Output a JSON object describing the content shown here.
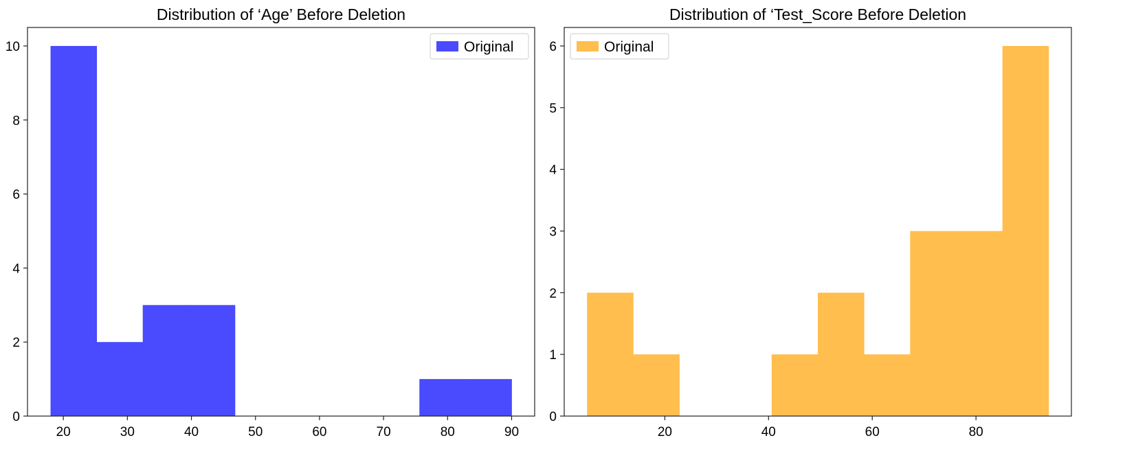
{
  "chart_data": [
    {
      "type": "bar",
      "subtype": "histogram",
      "title": "Distribution of ‘Age’ Before Deletion",
      "xlabel": "",
      "ylabel": "",
      "xlim": [
        14.4,
        93.6
      ],
      "ylim": [
        0,
        10.5
      ],
      "xticks": [
        "20",
        "30",
        "40",
        "50",
        "60",
        "70",
        "80",
        "90"
      ],
      "xtick_values": [
        20,
        30,
        40,
        50,
        60,
        70,
        80,
        90
      ],
      "yticks": [
        "0",
        "2",
        "4",
        "6",
        "8",
        "10"
      ],
      "ytick_values": [
        0,
        2,
        4,
        6,
        8,
        10
      ],
      "bin_edges": [
        18,
        25.2,
        32.4,
        39.6,
        46.8,
        54,
        61.2,
        68.4,
        75.6,
        82.8,
        90
      ],
      "series": [
        {
          "name": "Original",
          "color": "#4a4afe",
          "values": [
            10,
            2,
            3,
            3,
            0,
            0,
            0,
            0,
            1,
            1
          ]
        }
      ],
      "legend": {
        "position": "upper-right",
        "label": "Original"
      },
      "grid": false
    },
    {
      "type": "bar",
      "subtype": "histogram",
      "title": "Distribution of ‘Test_Score Before Deletion",
      "xlabel": "",
      "ylabel": "",
      "xlim": [
        0.6,
        98.4
      ],
      "ylim": [
        0,
        6.3
      ],
      "xticks": [
        "20",
        "40",
        "60",
        "80"
      ],
      "xtick_values": [
        20,
        40,
        60,
        80
      ],
      "yticks": [
        "0",
        "1",
        "2",
        "3",
        "4",
        "5",
        "6"
      ],
      "ytick_values": [
        0,
        1,
        2,
        3,
        4,
        5,
        6
      ],
      "bin_edges": [
        5,
        13.9,
        22.8,
        31.7,
        40.6,
        49.5,
        58.4,
        67.3,
        76.2,
        85.1,
        94
      ],
      "series": [
        {
          "name": "Original",
          "color": "#ffbe4d",
          "values": [
            2,
            1,
            0,
            0,
            1,
            2,
            1,
            3,
            3,
            6
          ]
        }
      ],
      "legend": {
        "position": "upper-left",
        "label": "Original"
      },
      "grid": false
    }
  ]
}
